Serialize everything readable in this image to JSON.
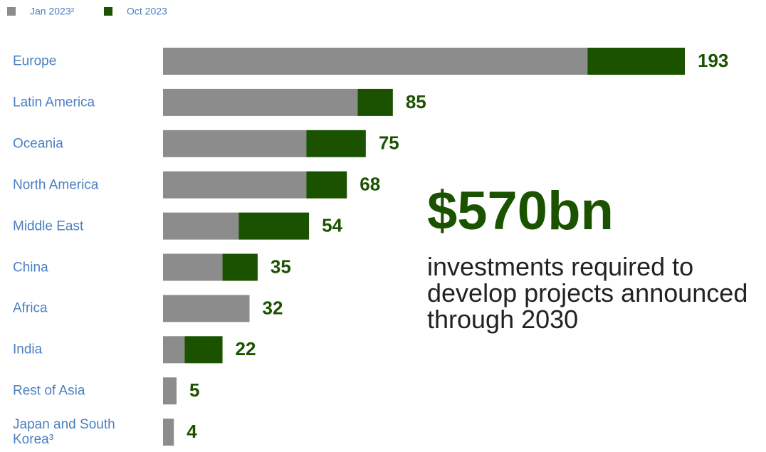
{
  "chart_data": {
    "type": "stacked-bar-horizontal",
    "categories": [
      "Europe",
      "Latin America",
      "Oceania",
      "North America",
      "Middle East",
      "China",
      "Africa",
      "India",
      "Rest of Asia",
      "Japan and South Korea³"
    ],
    "series": [
      {
        "name": "Jan 2023²",
        "color": "#8c8c8c",
        "values": [
          157,
          72,
          53,
          53,
          28,
          22,
          32,
          8,
          5,
          4
        ]
      },
      {
        "name": "Oct 2023",
        "color": "#1a5200",
        "values": [
          36,
          13,
          22,
          15,
          26,
          13,
          0,
          14,
          0,
          0
        ]
      }
    ],
    "totals": [
      193,
      85,
      75,
      68,
      54,
      35,
      32,
      22,
      5,
      4
    ],
    "legend": "top-left"
  },
  "callout": {
    "headline": "$570bn",
    "text": "investments required to develop projects announced through 2030"
  }
}
